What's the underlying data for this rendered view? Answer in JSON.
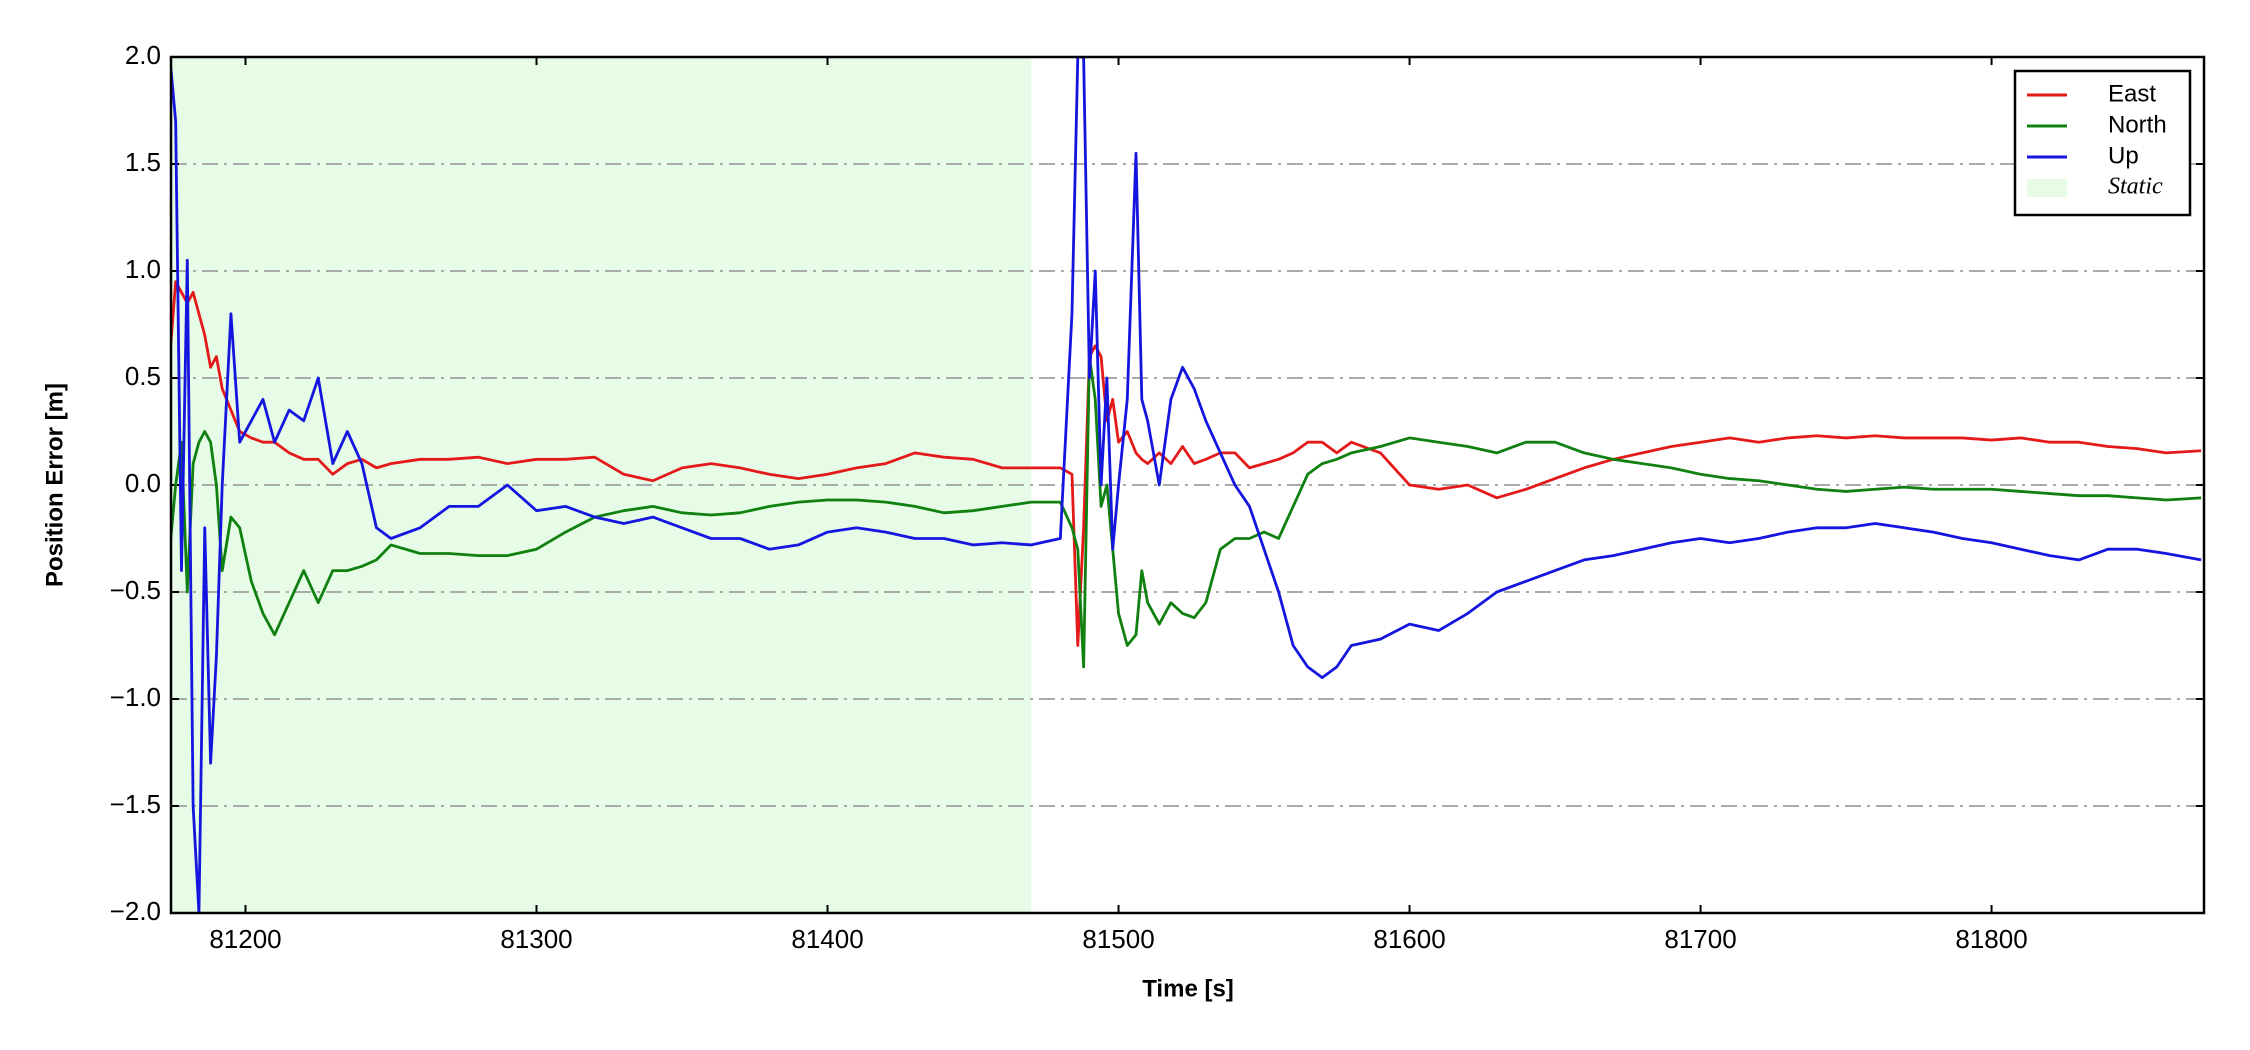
{
  "chart_data": {
    "type": "line",
    "xlabel": "Time [s]",
    "ylabel": "Position Error [m]",
    "xlim": [
      81174.4,
      81873
    ],
    "ylim": [
      -2,
      2
    ],
    "xticks": [
      81200,
      81300,
      81400,
      81500,
      81600,
      81700,
      81800
    ],
    "yticks": [
      {
        "value": -2,
        "label": "−2.0"
      },
      {
        "value": -1.5,
        "label": "−1.5"
      },
      {
        "value": -1,
        "label": "−1.0"
      },
      {
        "value": -0.5,
        "label": "−0.5"
      },
      {
        "value": 0,
        "label": "0.0"
      },
      {
        "value": 0.5,
        "label": "0.5"
      },
      {
        "value": 1,
        "label": "1.0"
      },
      {
        "value": 1.5,
        "label": "1.5"
      },
      {
        "value": 2,
        "label": "2.0"
      }
    ],
    "grid": true,
    "legend_position": "upper right",
    "shade": {
      "label": "Static",
      "xlim": [
        81174.4,
        81470
      ],
      "color": "#e6fce6"
    },
    "x": [
      81174,
      81176,
      81178,
      81180,
      81182,
      81184,
      81186,
      81188,
      81190,
      81192,
      81195,
      81198,
      81202,
      81206,
      81210,
      81215,
      81220,
      81225,
      81230,
      81235,
      81240,
      81245,
      81250,
      81260,
      81270,
      81280,
      81290,
      81300,
      81310,
      81320,
      81330,
      81340,
      81350,
      81360,
      81370,
      81380,
      81390,
      81400,
      81410,
      81420,
      81430,
      81440,
      81450,
      81460,
      81470,
      81480,
      81484,
      81486,
      81488,
      81490,
      81492,
      81494,
      81496,
      81498,
      81500,
      81503,
      81506,
      81508,
      81510,
      81514,
      81518,
      81522,
      81526,
      81530,
      81535,
      81540,
      81545,
      81550,
      81555,
      81560,
      81565,
      81570,
      81575,
      81580,
      81590,
      81600,
      81610,
      81620,
      81630,
      81640,
      81650,
      81660,
      81670,
      81680,
      81690,
      81700,
      81710,
      81720,
      81730,
      81740,
      81750,
      81760,
      81770,
      81780,
      81790,
      81800,
      81810,
      81820,
      81830,
      81840,
      81850,
      81860,
      81872
    ],
    "series": [
      {
        "name": "East",
        "color": "#e41a1a",
        "values": [
          0.6,
          0.95,
          0.9,
          0.85,
          0.9,
          0.8,
          0.7,
          0.55,
          0.6,
          0.45,
          0.35,
          0.25,
          0.22,
          0.2,
          0.2,
          0.15,
          0.12,
          0.12,
          0.05,
          0.1,
          0.12,
          0.08,
          0.1,
          0.12,
          0.12,
          0.13,
          0.1,
          0.12,
          0.12,
          0.13,
          0.05,
          0.02,
          0.08,
          0.1,
          0.08,
          0.05,
          0.03,
          0.05,
          0.08,
          0.1,
          0.15,
          0.13,
          0.12,
          0.08,
          0.08,
          0.08,
          0.05,
          -0.75,
          -0.2,
          0.6,
          0.65,
          0.6,
          0.3,
          0.4,
          0.2,
          0.25,
          0.15,
          0.12,
          0.1,
          0.15,
          0.1,
          0.18,
          0.1,
          0.12,
          0.15,
          0.15,
          0.08,
          0.1,
          0.12,
          0.15,
          0.2,
          0.2,
          0.15,
          0.2,
          0.15,
          0.0,
          -0.02,
          0.0,
          -0.06,
          -0.02,
          0.03,
          0.08,
          0.12,
          0.15,
          0.18,
          0.2,
          0.22,
          0.2,
          0.22,
          0.23,
          0.22,
          0.23,
          0.22,
          0.22,
          0.22,
          0.21,
          0.22,
          0.2,
          0.2,
          0.18,
          0.17,
          0.15,
          0.16
        ]
      },
      {
        "name": "North",
        "color": "#108010",
        "values": [
          -0.3,
          0.0,
          0.2,
          -0.5,
          0.1,
          0.2,
          0.25,
          0.2,
          0.0,
          -0.4,
          -0.15,
          -0.2,
          -0.45,
          -0.6,
          -0.7,
          -0.55,
          -0.4,
          -0.55,
          -0.4,
          -0.4,
          -0.38,
          -0.35,
          -0.28,
          -0.32,
          -0.32,
          -0.33,
          -0.33,
          -0.3,
          -0.22,
          -0.15,
          -0.12,
          -0.1,
          -0.13,
          -0.14,
          -0.13,
          -0.1,
          -0.08,
          -0.07,
          -0.07,
          -0.08,
          -0.1,
          -0.13,
          -0.12,
          -0.1,
          -0.08,
          -0.08,
          -0.2,
          -0.3,
          -0.85,
          0.6,
          0.4,
          -0.1,
          0.0,
          -0.3,
          -0.6,
          -0.75,
          -0.7,
          -0.4,
          -0.55,
          -0.65,
          -0.55,
          -0.6,
          -0.62,
          -0.55,
          -0.3,
          -0.25,
          -0.25,
          -0.22,
          -0.25,
          -0.1,
          0.05,
          0.1,
          0.12,
          0.15,
          0.18,
          0.22,
          0.2,
          0.18,
          0.15,
          0.2,
          0.2,
          0.15,
          0.12,
          0.1,
          0.08,
          0.05,
          0.03,
          0.02,
          0.0,
          -0.02,
          -0.03,
          -0.02,
          -0.01,
          -0.02,
          -0.02,
          -0.02,
          -0.03,
          -0.04,
          -0.05,
          -0.05,
          -0.06,
          -0.07,
          -0.06
        ]
      },
      {
        "name": "Up",
        "color": "#1515e0",
        "values": [
          2.0,
          1.7,
          -0.4,
          1.05,
          -1.5,
          -2.0,
          -0.2,
          -1.3,
          -0.8,
          0.0,
          0.8,
          0.2,
          0.3,
          0.4,
          0.2,
          0.35,
          0.3,
          0.5,
          0.1,
          0.25,
          0.1,
          -0.2,
          -0.25,
          -0.2,
          -0.1,
          -0.1,
          0.0,
          -0.12,
          -0.1,
          -0.15,
          -0.18,
          -0.15,
          -0.2,
          -0.25,
          -0.25,
          -0.3,
          -0.28,
          -0.22,
          -0.2,
          -0.22,
          -0.25,
          -0.25,
          -0.28,
          -0.27,
          -0.28,
          -0.25,
          0.8,
          2.0,
          2.0,
          0.5,
          1.0,
          0.0,
          0.5,
          -0.3,
          0.0,
          0.4,
          1.55,
          0.4,
          0.3,
          0.0,
          0.4,
          0.55,
          0.45,
          0.3,
          0.15,
          0.0,
          -0.1,
          -0.3,
          -0.5,
          -0.75,
          -0.85,
          -0.9,
          -0.85,
          -0.75,
          -0.72,
          -0.65,
          -0.68,
          -0.6,
          -0.5,
          -0.45,
          -0.4,
          -0.35,
          -0.33,
          -0.3,
          -0.27,
          -0.25,
          -0.27,
          -0.25,
          -0.22,
          -0.2,
          -0.2,
          -0.18,
          -0.2,
          -0.22,
          -0.25,
          -0.27,
          -0.3,
          -0.33,
          -0.35,
          -0.3,
          -0.3,
          -0.32,
          -0.35
        ]
      }
    ]
  }
}
